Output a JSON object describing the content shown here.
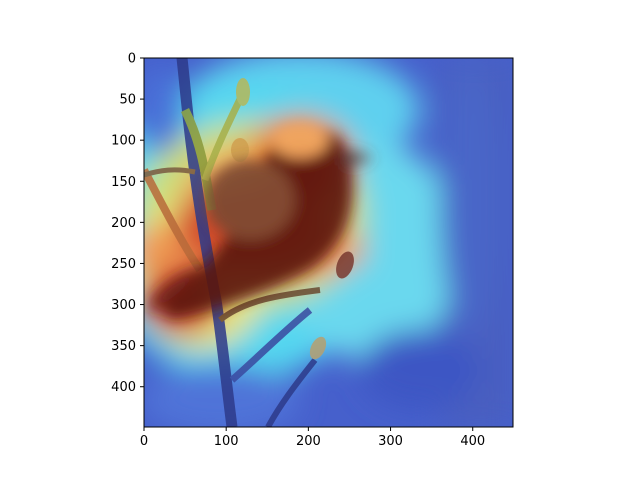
{
  "image": {
    "subject": "bird-on-branch",
    "overlay": "heatmap",
    "colormap": "jet",
    "colors": {
      "low": "#3a4fd0",
      "mid_low": "#3ad2f4",
      "mid": "#d9e86a",
      "mid_high": "#f08a3a",
      "high": "#c2171d"
    }
  },
  "axes": {
    "x_ticks": [
      "0",
      "100",
      "200",
      "300",
      "400"
    ],
    "y_ticks": [
      "0",
      "50",
      "100",
      "150",
      "200",
      "250",
      "300",
      "350",
      "400"
    ],
    "x_range": [
      0,
      449
    ],
    "y_range": [
      0,
      449
    ],
    "y_inverted": true
  }
}
